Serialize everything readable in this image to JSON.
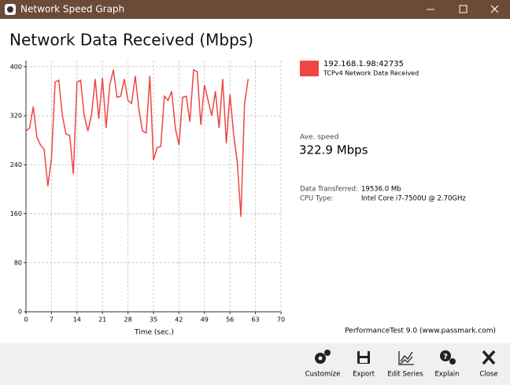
{
  "window": {
    "title": "Network Speed Graph"
  },
  "chart_data": {
    "type": "line",
    "title": "Network Data Received (Mbps)",
    "x_label": "Time (sec.)",
    "x": [
      0,
      1,
      2,
      3,
      4,
      5,
      6,
      7,
      8,
      9,
      10,
      11,
      12,
      13,
      14,
      15,
      16,
      17,
      18,
      19,
      20,
      21,
      22,
      23,
      24,
      25,
      26,
      27,
      28,
      29,
      30,
      31,
      32,
      33,
      34,
      35,
      36,
      37,
      38,
      39,
      40,
      41,
      42,
      43,
      44,
      45,
      46,
      47,
      48,
      49,
      50,
      51,
      52,
      53,
      54,
      55,
      56,
      57,
      58,
      59,
      60,
      61
    ],
    "series": [
      {
        "name": "192.168.1.98:42735",
        "color": "#f04545",
        "values": [
          295,
          300,
          335,
          285,
          272,
          265,
          205,
          250,
          375,
          378,
          320,
          290,
          288,
          225,
          375,
          378,
          320,
          295,
          322,
          380,
          315,
          382,
          300,
          370,
          395,
          350,
          352,
          380,
          345,
          340,
          385,
          330,
          295,
          292,
          385,
          248,
          268,
          270,
          352,
          345,
          360,
          300,
          272,
          350,
          352,
          310,
          395,
          392,
          305,
          370,
          345,
          320,
          360,
          300,
          380,
          275,
          355,
          290,
          245,
          155,
          340,
          380
        ]
      }
    ],
    "xlim": [
      0,
      70
    ],
    "xticks": [
      0,
      7,
      14,
      21,
      28,
      35,
      42,
      49,
      56,
      63,
      70
    ],
    "ylim": [
      0,
      410
    ],
    "yticks": [
      0,
      80,
      160,
      240,
      320,
      400
    ],
    "grid": true
  },
  "panel": {
    "series_desc": "TCPv4 Network Data Received",
    "ave_label": "Ave. speed",
    "ave_value": "322.9 Mbps",
    "rows": [
      [
        "Data Transferred:",
        "19536.0 Mb"
      ],
      [
        "CPU Type:",
        "Intel Core i7-7500U @ 2.70GHz"
      ]
    ]
  },
  "footer": "PerformanceTest 9.0 (www.passmark.com)",
  "toolbar": [
    "Customize",
    "Export",
    "Edit Series",
    "Explain",
    "Close"
  ]
}
